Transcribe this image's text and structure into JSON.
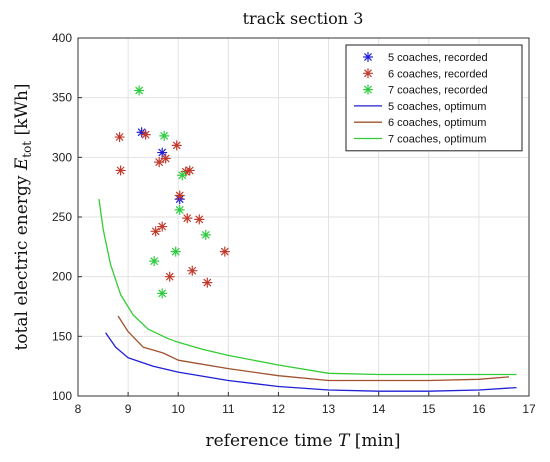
{
  "chart_data": {
    "type": "scatter",
    "title": "track section 3",
    "xlabel_text": "reference time ",
    "xlabel_var": "T",
    "xlabel_unit": " [min]",
    "ylabel_text": "total electric energy ",
    "ylabel_var": "E",
    "ylabel_sub": "tot",
    "ylabel_unit": " [kWh]",
    "xlim": [
      8,
      17
    ],
    "ylim": [
      100,
      400
    ],
    "xticks": [
      "8",
      "9",
      "10",
      "11",
      "12",
      "13",
      "14",
      "15",
      "16",
      "17"
    ],
    "yticks": [
      "100",
      "150",
      "200",
      "250",
      "300",
      "350",
      "400"
    ],
    "grid": true,
    "legend_position": "top-right",
    "series": [
      {
        "name": "5 coaches, recorded",
        "kind": "markers",
        "color": "#1f1fd6",
        "points": [
          [
            9.27,
            321
          ],
          [
            9.68,
            304
          ],
          [
            10.03,
            265
          ]
        ]
      },
      {
        "name": "6 coaches, recorded",
        "kind": "markers",
        "color": "#c0392b",
        "points": [
          [
            8.83,
            317
          ],
          [
            8.85,
            289
          ],
          [
            9.35,
            319
          ],
          [
            9.62,
            296
          ],
          [
            9.75,
            299
          ],
          [
            9.97,
            310
          ],
          [
            10.03,
            268
          ],
          [
            10.15,
            288
          ],
          [
            10.23,
            289
          ],
          [
            9.55,
            238
          ],
          [
            9.68,
            242
          ],
          [
            10.18,
            249
          ],
          [
            10.42,
            248
          ],
          [
            9.83,
            200
          ],
          [
            10.28,
            205
          ],
          [
            10.58,
            195
          ],
          [
            10.93,
            221
          ]
        ]
      },
      {
        "name": "7 coaches, recorded",
        "kind": "markers",
        "color": "#2ecc40",
        "points": [
          [
            9.22,
            356
          ],
          [
            9.72,
            318
          ],
          [
            10.08,
            285
          ],
          [
            10.03,
            256
          ],
          [
            9.52,
            213
          ],
          [
            9.95,
            221
          ],
          [
            10.55,
            235
          ],
          [
            9.68,
            186
          ]
        ]
      },
      {
        "name": "5 coaches, optimum",
        "kind": "line",
        "color": "#1f1fd6",
        "points": [
          [
            8.55,
            153
          ],
          [
            8.75,
            141
          ],
          [
            9.0,
            132
          ],
          [
            9.5,
            125
          ],
          [
            10.0,
            120
          ],
          [
            11.0,
            113
          ],
          [
            12.0,
            108
          ],
          [
            13.0,
            105
          ],
          [
            14.0,
            104
          ],
          [
            15.0,
            104
          ],
          [
            16.0,
            105
          ],
          [
            16.75,
            107
          ]
        ]
      },
      {
        "name": "6 coaches, optimum",
        "kind": "line",
        "color": "#a0522d",
        "points": [
          [
            8.8,
            167
          ],
          [
            9.0,
            154
          ],
          [
            9.3,
            141
          ],
          [
            9.7,
            136
          ],
          [
            10.0,
            130
          ],
          [
            11.0,
            123
          ],
          [
            12.0,
            117
          ],
          [
            13.0,
            113
          ],
          [
            14.0,
            113
          ],
          [
            15.0,
            113
          ],
          [
            16.0,
            114
          ],
          [
            16.6,
            116
          ]
        ]
      },
      {
        "name": "7 coaches, optimum",
        "kind": "line",
        "color": "#33cc33",
        "points": [
          [
            8.42,
            265
          ],
          [
            8.5,
            240
          ],
          [
            8.65,
            210
          ],
          [
            8.85,
            185
          ],
          [
            9.1,
            168
          ],
          [
            9.4,
            156
          ],
          [
            9.8,
            148
          ],
          [
            10.0,
            145
          ],
          [
            10.5,
            139
          ],
          [
            11.0,
            134
          ],
          [
            12.0,
            126
          ],
          [
            13.0,
            119
          ],
          [
            14.0,
            118
          ],
          [
            15.0,
            118
          ],
          [
            16.0,
            118
          ],
          [
            16.75,
            118
          ]
        ]
      }
    ]
  }
}
